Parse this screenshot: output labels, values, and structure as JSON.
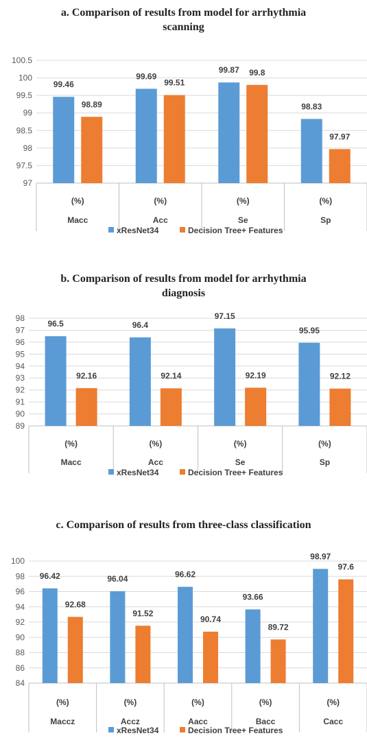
{
  "colors": {
    "series1": "#5b9bd5",
    "series2": "#ed7d31",
    "grid": "#d9d9d9",
    "axis": "#bfbfbf"
  },
  "chart_data": [
    {
      "type": "bar",
      "title": "a. Comparison of results from model for arrhythmia scanning",
      "title_lines": [
        "a. Comparison of results from model for arrhythmia",
        "scanning"
      ],
      "categories": [
        "Macc",
        "Acc",
        "Se",
        "Sp"
      ],
      "unit_row": [
        "(%)",
        "(%)",
        "(%)",
        "(%)"
      ],
      "ylim": [
        97,
        100.5
      ],
      "yticks": [
        "97",
        "97.5",
        "98",
        "98.5",
        "99",
        "99.5",
        "100",
        "100.5"
      ],
      "grid": true,
      "legend_position": "bottom",
      "series": [
        {
          "name": "xResNet34",
          "values": [
            99.46,
            99.69,
            99.87,
            98.83
          ],
          "labels": [
            "99.46",
            "99.69",
            "99.87",
            "98.83"
          ]
        },
        {
          "name": "Decision Tree+ Features",
          "values": [
            98.89,
            99.51,
            99.8,
            97.97
          ],
          "labels": [
            "98.89",
            "99.51",
            "99.8",
            "97.97"
          ]
        }
      ]
    },
    {
      "type": "bar",
      "title": "b. Comparison of results from model for arrhythmia diagnosis",
      "title_lines": [
        "b. Comparison of results from model for arrhythmia",
        "diagnosis"
      ],
      "categories": [
        "Macc",
        "Acc",
        "Se",
        "Sp"
      ],
      "unit_row": [
        "(%)",
        "(%)",
        "(%)",
        "(%)"
      ],
      "ylim": [
        89,
        98
      ],
      "yticks": [
        "89",
        "90",
        "91",
        "92",
        "93",
        "94",
        "95",
        "96",
        "97",
        "98"
      ],
      "grid": true,
      "legend_position": "bottom",
      "series": [
        {
          "name": "xResNet34",
          "values": [
            96.5,
            96.4,
            97.15,
            95.95
          ],
          "labels": [
            "96.5",
            "96.4",
            "97.15",
            "95.95"
          ]
        },
        {
          "name": "Decision Tree+ Features",
          "values": [
            92.16,
            92.14,
            92.19,
            92.12
          ],
          "labels": [
            "92.16",
            "92.14",
            "92.19",
            "92.12"
          ]
        }
      ]
    },
    {
      "type": "bar",
      "title": "c. Comparison of results from three-class classification",
      "title_lines": [
        "c. Comparison of results from three-class classification"
      ],
      "categories": [
        "Maccz",
        "Accz",
        "Aacc",
        "Bacc",
        "Cacc"
      ],
      "unit_row": [
        "(%)",
        "(%)",
        "(%)",
        "(%)",
        "(%)"
      ],
      "ylim": [
        84,
        100
      ],
      "yticks": [
        "84",
        "86",
        "88",
        "90",
        "92",
        "94",
        "96",
        "98",
        "100"
      ],
      "grid": true,
      "legend_position": "bottom",
      "series": [
        {
          "name": "xResNet34",
          "values": [
            96.42,
            96.04,
            96.62,
            93.66,
            98.97
          ],
          "labels": [
            "96.42",
            "96.04",
            "96.62",
            "93.66",
            "98.97"
          ]
        },
        {
          "name": "Decision Tree+ Features",
          "values": [
            92.68,
            91.52,
            90.74,
            89.72,
            97.6
          ],
          "labels": [
            "92.68",
            "91.52",
            "90.74",
            "89.72",
            "97.6"
          ]
        }
      ]
    }
  ]
}
